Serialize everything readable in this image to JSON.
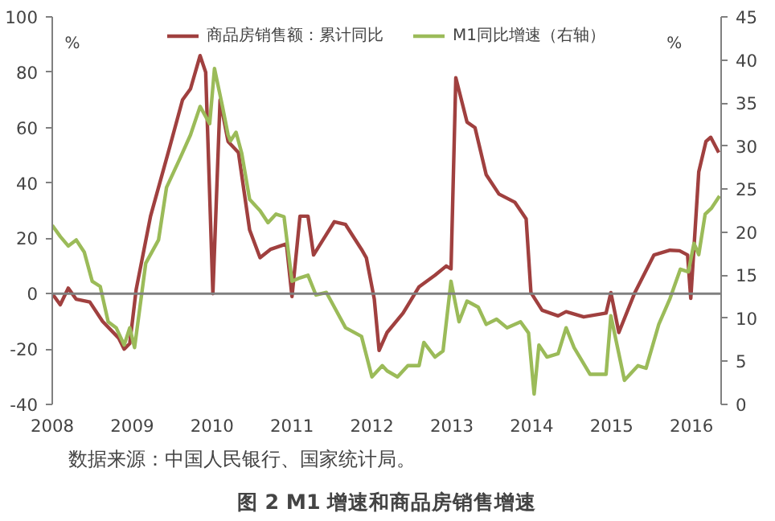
{
  "chart_data": {
    "type": "line",
    "title": "图 2 M1 增速和商品房销售增速",
    "annotations": [
      "数据来源：中国人民银行、国家统计局。",
      "%",
      "%"
    ],
    "xlim": [
      2008,
      2016.37
    ],
    "xticks": [
      {
        "value": 2008,
        "label": "2008"
      },
      {
        "value": 2009,
        "label": "2009"
      },
      {
        "value": 2010,
        "label": "2010"
      },
      {
        "value": 2011,
        "label": "2011"
      },
      {
        "value": 2012,
        "label": "2012"
      },
      {
        "value": 2013,
        "label": "2013"
      },
      {
        "value": 2014,
        "label": "2014"
      },
      {
        "value": 2015,
        "label": "2015"
      },
      {
        "value": 2016,
        "label": "2016"
      }
    ],
    "ylim": [
      -40,
      100
    ],
    "yticks": [
      -40,
      -20,
      0,
      20,
      40,
      60,
      80,
      100
    ],
    "y2lim": [
      0,
      45
    ],
    "y2ticks": [
      0,
      5,
      10,
      15,
      20,
      25,
      30,
      35,
      40,
      45
    ],
    "grid": false,
    "legend": "top",
    "line_style": "solid",
    "marker": "none",
    "ref_lines": [
      {
        "axis": "y",
        "value": 0,
        "label": null,
        "color": "#808080"
      }
    ],
    "series": [
      {
        "name": "商品房销售额：累计同比",
        "color": "#a0403f",
        "x": [
          2008.0,
          2008.1,
          2008.2,
          2008.3,
          2008.47,
          2008.63,
          2008.83,
          2008.9,
          2008.97,
          2009.05,
          2009.23,
          2009.47,
          2009.63,
          2009.73,
          2009.85,
          2009.92,
          2010.01,
          2010.1,
          2010.2,
          2010.33,
          2010.47,
          2010.6,
          2010.73,
          2010.93,
          2011.0,
          2011.1,
          2011.2,
          2011.27,
          2011.4,
          2011.53,
          2011.67,
          2011.87,
          2011.93,
          2012.03,
          2012.09,
          2012.19,
          2012.39,
          2012.59,
          2012.79,
          2012.93,
          2012.99,
          2013.05,
          2013.19,
          2013.29,
          2013.43,
          2013.59,
          2013.79,
          2013.93,
          2013.99,
          2014.13,
          2014.33,
          2014.43,
          2014.65,
          2014.93,
          2014.99,
          2015.09,
          2015.29,
          2015.53,
          2015.73,
          2015.85,
          2015.95,
          2015.99,
          2016.09,
          2016.18,
          2016.24,
          2016.34
        ],
        "values": [
          0,
          -4,
          2,
          -2,
          -3,
          -10,
          -16,
          -20,
          -18,
          1.5,
          28,
          53,
          70,
          74,
          86,
          80,
          0,
          70,
          55,
          51,
          23,
          13,
          16,
          18,
          -1,
          28,
          28,
          14,
          20,
          26,
          25,
          16,
          13,
          -2,
          -20.5,
          -14,
          -7,
          2.5,
          6.7,
          10,
          9,
          78,
          62,
          60,
          43,
          36,
          33,
          27,
          0.4,
          -6,
          -8,
          -6.5,
          -8.4,
          -7,
          0.4,
          -14,
          0.4,
          14,
          15.7,
          15.5,
          14,
          -1.7,
          44,
          55,
          56.5,
          51
        ]
      },
      {
        "name": "M1同比增速（右轴）",
        "color": "#9bbb59",
        "axis": "y2",
        "x": [
          2008.0,
          2008.1,
          2008.2,
          2008.3,
          2008.4,
          2008.5,
          2008.6,
          2008.7,
          2008.8,
          2008.9,
          2008.97,
          2009.03,
          2009.17,
          2009.33,
          2009.43,
          2009.6,
          2009.73,
          2009.85,
          2009.97,
          2010.03,
          2010.13,
          2010.2,
          2010.23,
          2010.3,
          2010.37,
          2010.47,
          2010.6,
          2010.7,
          2010.8,
          2010.9,
          2011.0,
          2011.1,
          2011.2,
          2011.3,
          2011.43,
          2011.53,
          2011.67,
          2011.87,
          2012.0,
          2012.13,
          2012.19,
          2012.32,
          2012.45,
          2012.59,
          2012.65,
          2012.79,
          2012.89,
          2012.99,
          2013.09,
          2013.19,
          2013.33,
          2013.43,
          2013.56,
          2013.69,
          2013.86,
          2013.96,
          2014.03,
          2014.09,
          2014.19,
          2014.33,
          2014.43,
          2014.53,
          2014.73,
          2014.93,
          2014.99,
          2015.16,
          2015.33,
          2015.43,
          2015.59,
          2015.73,
          2015.86,
          2015.96,
          2016.03,
          2016.09,
          2016.17,
          2016.25,
          2016.35
        ],
        "values": [
          20.8,
          19.5,
          18.4,
          19.1,
          17.7,
          14.3,
          13.7,
          9.6,
          8.9,
          6.9,
          8.9,
          6.6,
          16.4,
          19.1,
          25.2,
          28.6,
          31.3,
          34.6,
          32.6,
          39.0,
          34.6,
          31.3,
          30.6,
          31.6,
          29.2,
          23.8,
          22.5,
          21.1,
          22.1,
          21.8,
          14.3,
          14.7,
          15.0,
          12.7,
          13.0,
          11.3,
          8.9,
          7.9,
          3.2,
          4.5,
          3.9,
          3.2,
          4.5,
          4.5,
          7.2,
          5.5,
          6.2,
          14.3,
          9.6,
          12.0,
          11.3,
          9.3,
          9.9,
          8.9,
          9.6,
          8.3,
          1.2,
          6.9,
          5.5,
          5.9,
          8.9,
          6.6,
          3.5,
          3.5,
          10.3,
          2.8,
          4.5,
          4.2,
          9.3,
          12.3,
          15.7,
          15.4,
          18.7,
          17.4,
          22.1,
          22.8,
          24.2
        ]
      }
    ]
  }
}
